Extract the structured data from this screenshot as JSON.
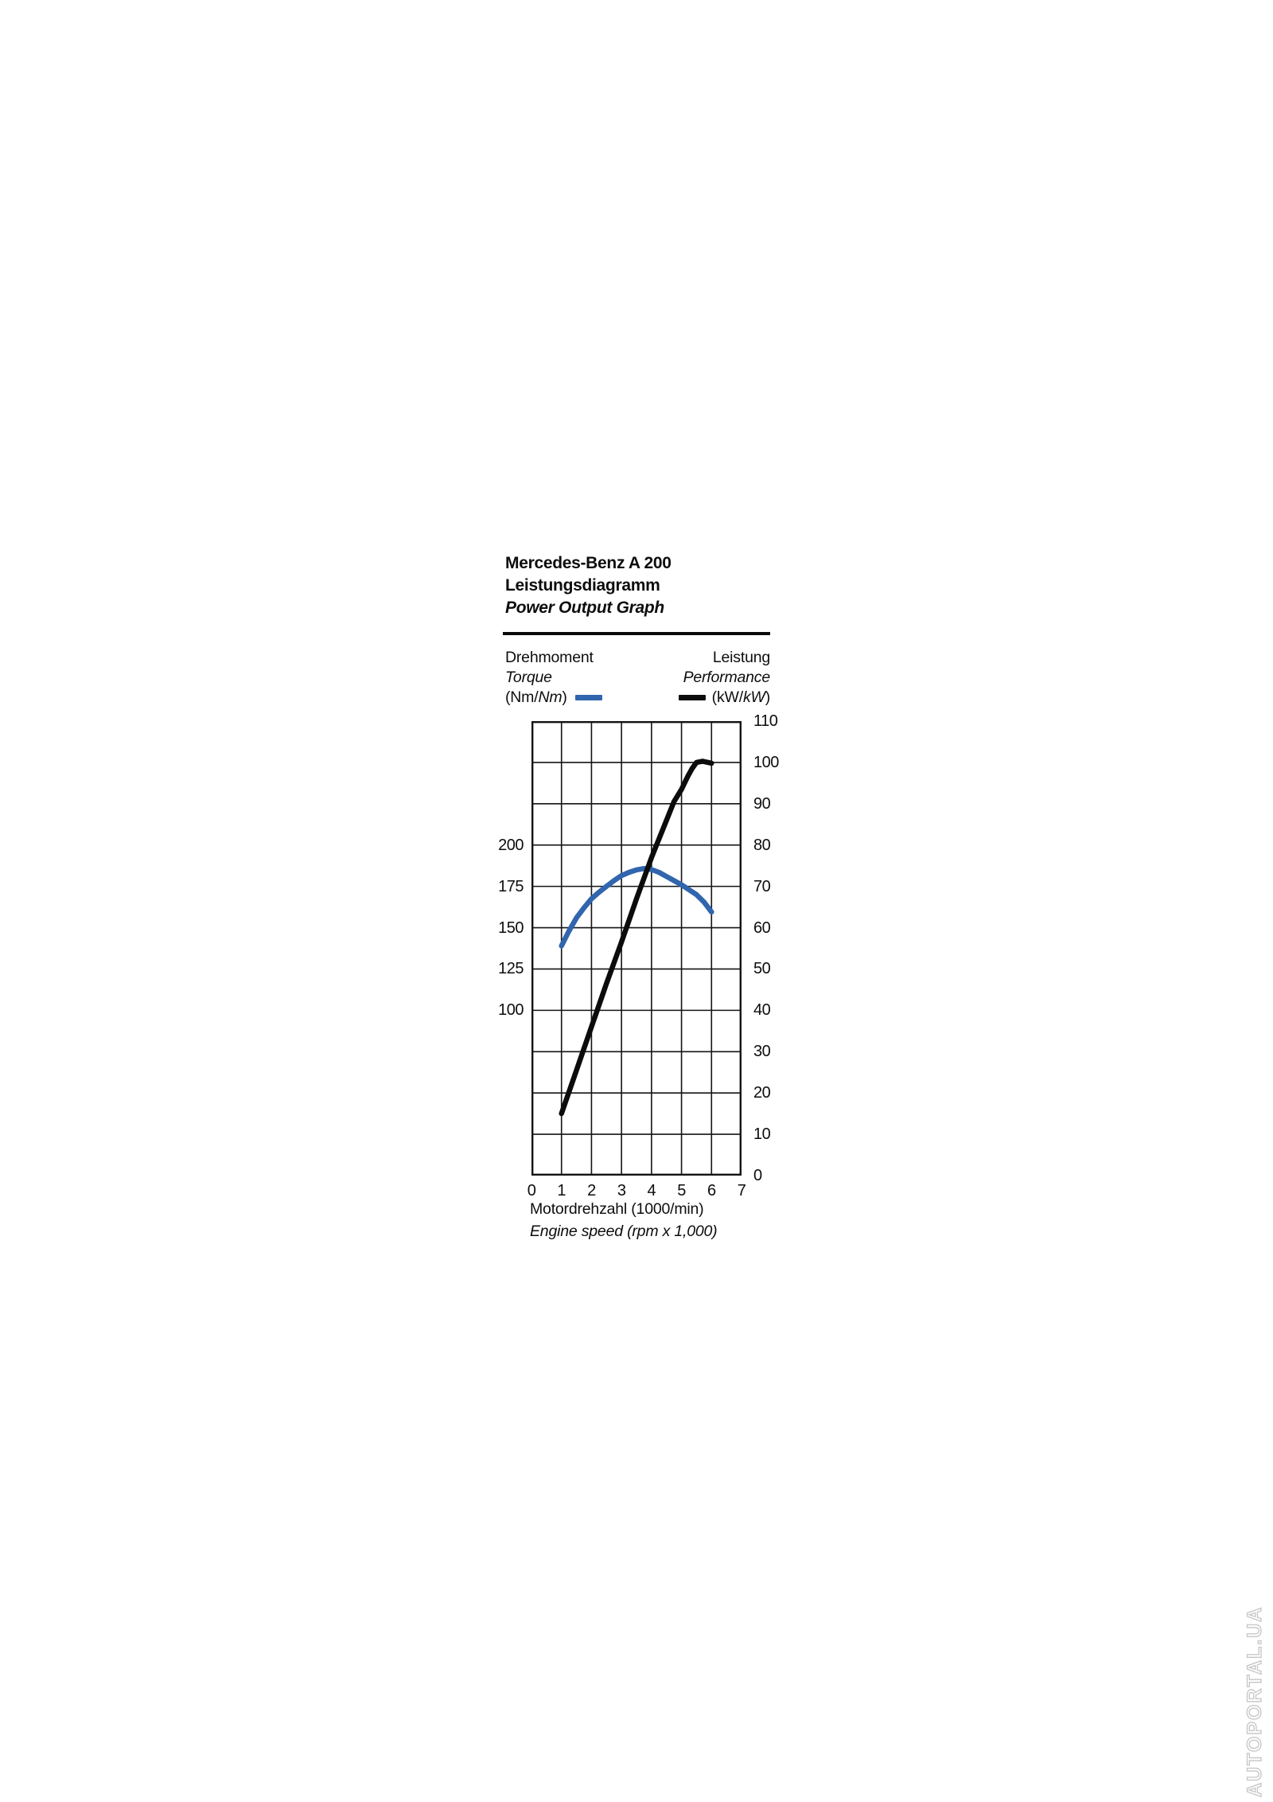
{
  "title": {
    "model": "Mercedes-Benz A 200",
    "subtitle_de": "Leistungsdiagramm",
    "subtitle_en": "Power Output Graph"
  },
  "legend": {
    "torque": {
      "label_de": "Drehmoment",
      "label_en": "Torque",
      "unit_pre": "(Nm/",
      "unit_italic": "Nm",
      "unit_post": ")",
      "color": "#3165ad"
    },
    "power": {
      "label_de": "Leistung",
      "label_en": "Performance",
      "unit_pre": "(kW/",
      "unit_italic": "kW",
      "unit_post": ")",
      "color": "#0c0c0c"
    }
  },
  "chart_data": {
    "type": "line",
    "title": "Mercedes-Benz A 200 Leistungsdiagramm / Power Output Graph",
    "x_axis": {
      "label_de": "Motordrehzahl (1000/min)",
      "label_en": "Engine speed (rpm x 1,000)",
      "ticks": [
        0,
        1,
        2,
        3,
        4,
        5,
        6,
        7
      ],
      "range": [
        0,
        7
      ]
    },
    "y_right_axis": {
      "name": "Leistung / Performance",
      "unit": "kW",
      "ticks": [
        110,
        100,
        90,
        80,
        70,
        60,
        50,
        40,
        30,
        20,
        10,
        0
      ],
      "range": [
        0,
        110
      ]
    },
    "y_left_axis": {
      "name": "Drehmoment / Torque",
      "unit": "Nm",
      "ticks": [
        200,
        175,
        150,
        125,
        100
      ],
      "nm_per_kw": 2.5
    },
    "grid": true,
    "legend_position": "top",
    "series": [
      {
        "name": "Drehmoment / Torque (Nm)",
        "axis": "left",
        "color": "#3165ad",
        "points": [
          [
            1.0,
            139
          ],
          [
            1.25,
            148
          ],
          [
            1.5,
            156
          ],
          [
            1.75,
            162
          ],
          [
            2.0,
            167.5
          ],
          [
            2.25,
            171.5
          ],
          [
            2.5,
            175
          ],
          [
            2.75,
            178.5
          ],
          [
            3.0,
            181.5
          ],
          [
            3.25,
            183.5
          ],
          [
            3.5,
            185
          ],
          [
            3.75,
            185.8
          ],
          [
            4.0,
            185.2
          ],
          [
            4.25,
            183.5
          ],
          [
            4.5,
            181
          ],
          [
            4.75,
            178.5
          ],
          [
            5.0,
            176
          ],
          [
            5.25,
            173
          ],
          [
            5.5,
            170
          ],
          [
            5.75,
            165.5
          ],
          [
            6.0,
            159.5
          ]
        ]
      },
      {
        "name": "Leistung / Performance (kW)",
        "axis": "right",
        "color": "#0c0c0c",
        "points": [
          [
            1.0,
            15
          ],
          [
            1.5,
            25.5
          ],
          [
            2.0,
            36
          ],
          [
            2.5,
            46.5
          ],
          [
            3.0,
            56.5
          ],
          [
            3.5,
            67
          ],
          [
            4.0,
            77
          ],
          [
            4.25,
            81.5
          ],
          [
            4.5,
            86
          ],
          [
            4.75,
            90.5
          ],
          [
            5.0,
            93.5
          ],
          [
            5.2,
            96.5
          ],
          [
            5.35,
            98.5
          ],
          [
            5.5,
            100
          ],
          [
            5.7,
            100.3
          ],
          [
            6.0,
            99.8
          ]
        ]
      }
    ]
  },
  "watermark": {
    "text": "AUTOPORTAL.UA"
  }
}
